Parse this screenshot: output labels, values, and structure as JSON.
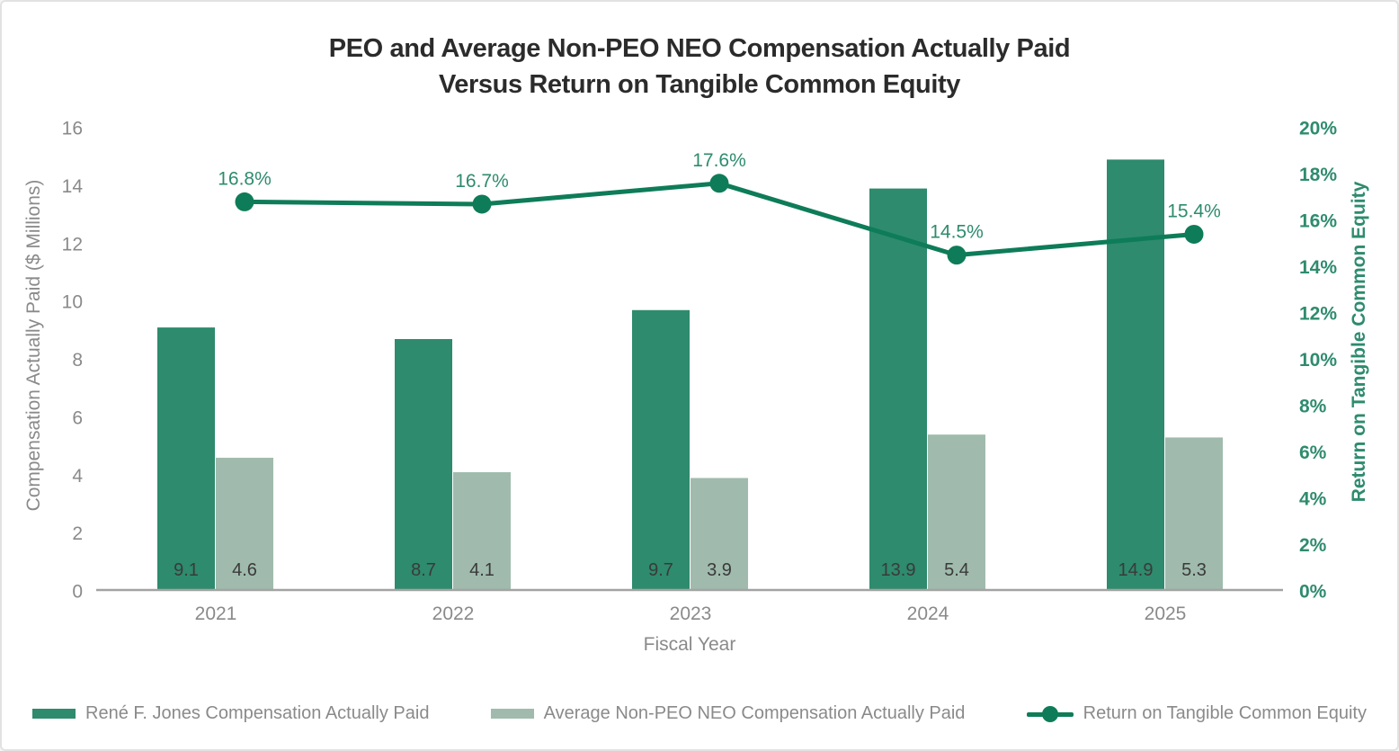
{
  "title": {
    "line1": "PEO and Average Non-PEO NEO Compensation Actually Paid",
    "line2": "Versus Return on Tangible Common Equity"
  },
  "chart_data": {
    "type": "combo-bar-line",
    "categories": [
      "2021",
      "2022",
      "2023",
      "2024",
      "2025"
    ],
    "series": [
      {
        "name": "René F. Jones Compensation Actually Paid",
        "type": "bar",
        "axis": "left",
        "color": "#2e8b6d",
        "values": [
          9.1,
          8.7,
          9.7,
          13.9,
          14.9
        ],
        "labels": [
          "9.1",
          "8.7",
          "9.7",
          "13.9",
          "14.9"
        ]
      },
      {
        "name": "Average Non-PEO NEO Compensation Actually Paid",
        "type": "bar",
        "axis": "left",
        "color": "#a0bbad",
        "values": [
          4.6,
          4.1,
          3.9,
          5.4,
          5.3
        ],
        "labels": [
          "4.6",
          "4.1",
          "3.9",
          "5.4",
          "5.3"
        ]
      },
      {
        "name": "Return on Tangible Common Equity",
        "type": "line",
        "axis": "right",
        "color": "#0e7c58",
        "values": [
          16.8,
          16.7,
          17.6,
          14.5,
          15.4
        ],
        "labels": [
          "16.8%",
          "16.7%",
          "17.6%",
          "14.5%",
          "15.4%"
        ]
      }
    ],
    "x_axis": {
      "label": "Fiscal Year"
    },
    "y_left": {
      "label": "Compensation Actually Paid ($ Millions)",
      "ticks": [
        "0",
        "2",
        "4",
        "6",
        "8",
        "10",
        "12",
        "14",
        "16"
      ],
      "min": 0,
      "max": 16,
      "grid": false
    },
    "y_right": {
      "label": "Return on Tangible Common Equity",
      "ticks": [
        "0%",
        "2%",
        "4%",
        "6%",
        "8%",
        "10%",
        "12%",
        "14%",
        "16%",
        "18%",
        "20%"
      ],
      "min": 0,
      "max": 20,
      "grid": false
    },
    "legend_position": "bottom"
  },
  "legend": [
    {
      "label": "René F. Jones Compensation Actually Paid",
      "swatch": "bar",
      "color": "#2e8b6d"
    },
    {
      "label": "Average Non-PEO NEO Compensation Actually Paid",
      "swatch": "bar",
      "color": "#a0bbad"
    },
    {
      "label": "Return on Tangible Common Equity",
      "swatch": "line-dot",
      "color": "#0e7c58"
    }
  ],
  "colors": {
    "peo_bar": "#2e8b6d",
    "neo_bar": "#a0bbad",
    "rotce_line": "#0e7c58",
    "green_text": "#2e8b6e",
    "gray_text": "#8a8a8a",
    "value_text": "#3a3a3a",
    "title_text": "#2b2b2b",
    "axis_line": "#a3a3a3",
    "background": "#ffffff"
  }
}
